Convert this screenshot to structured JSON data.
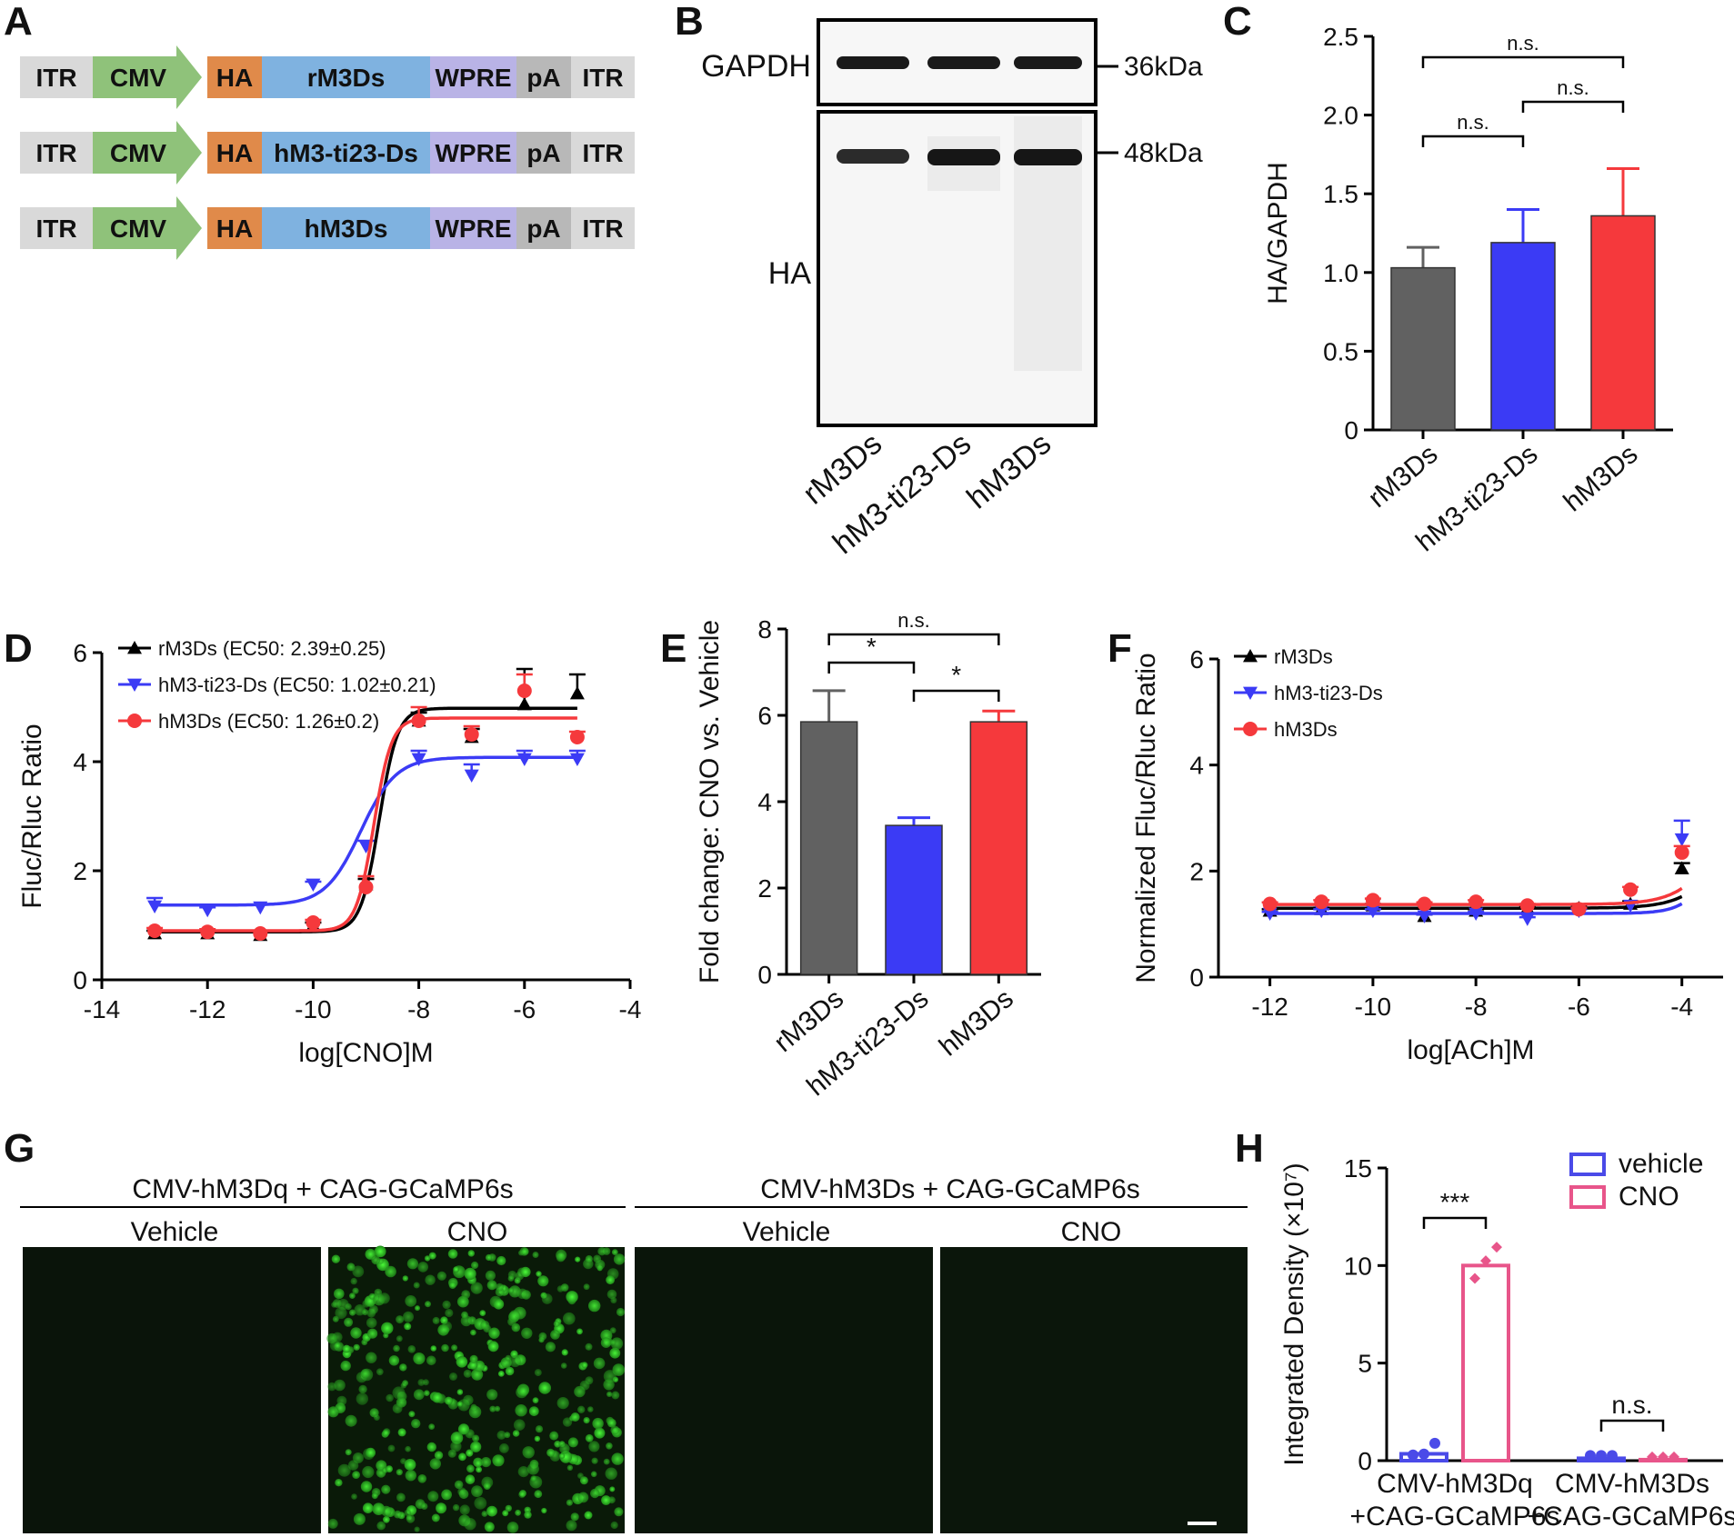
{
  "panels": {
    "A": {
      "label": "A",
      "constructs": [
        {
          "segments": [
            "ITR",
            "CMV",
            "HA",
            "rM3Ds",
            "WPRE",
            "pA",
            "ITR"
          ]
        },
        {
          "segments": [
            "ITR",
            "CMV",
            "HA",
            "hM3-ti23-Ds",
            "WPRE",
            "pA",
            "ITR"
          ]
        },
        {
          "segments": [
            "ITR",
            "CMV",
            "HA",
            "hM3Ds",
            "WPRE",
            "pA",
            "ITR"
          ]
        }
      ],
      "colors": {
        "ITR": "#d9d9d9",
        "CMV": "#8fc27a",
        "HA": "#e08a4a",
        "gene": "#7fb2e0",
        "WPRE": "#b9b3e6",
        "pA": "#b8b8b8"
      }
    },
    "B": {
      "label": "B",
      "blot_labels": [
        "GAPDH",
        "HA"
      ],
      "markers": [
        "36kDa",
        "48kDa"
      ],
      "lanes": [
        "rM3Ds",
        "hM3-ti23-Ds",
        "hM3Ds"
      ]
    },
    "G": {
      "label": "G",
      "groups": [
        {
          "title": "CMV-hM3Dq + CAG-GCaMP6s",
          "conditions": [
            "Vehicle",
            "CNO"
          ]
        },
        {
          "title": "CMV-hM3Ds + CAG-GCaMP6s",
          "conditions": [
            "Vehicle",
            "CNO"
          ]
        }
      ]
    }
  },
  "chart_data": [
    {
      "panel": "C",
      "type": "bar",
      "categories": [
        "rM3Ds",
        "hM3-ti23-Ds",
        "hM3Ds"
      ],
      "values": [
        1.03,
        1.19,
        1.36
      ],
      "errors": [
        0.13,
        0.21,
        0.3
      ],
      "colors": [
        "#616161",
        "#3b3bf5",
        "#f5393c"
      ],
      "ylabel": "HA/GAPDH",
      "ylim": [
        0,
        2.5
      ],
      "yticks": [
        "0",
        "0.5",
        "1.0",
        "1.5",
        "2.0",
        "2.5"
      ],
      "significance": [
        {
          "from": 0,
          "to": 1,
          "label": "n.s."
        },
        {
          "from": 1,
          "to": 2,
          "label": "n.s."
        },
        {
          "from": 0,
          "to": 2,
          "label": "n.s."
        }
      ]
    },
    {
      "panel": "D",
      "type": "line",
      "xlabel": "log[CNO]M",
      "ylabel": "Fluc/Rluc Ratio",
      "xlim": [
        -14,
        -4
      ],
      "ylim": [
        0,
        6
      ],
      "xticks": [
        "-14",
        "-12",
        "-10",
        "-8",
        "-6",
        "-4"
      ],
      "yticks": [
        "0",
        "2",
        "4",
        "6"
      ],
      "legend_position": "top-left",
      "x": [
        -13,
        -12,
        -11,
        -10,
        -9,
        -8,
        -7,
        -6,
        -5
      ],
      "series": [
        {
          "name": "rM3Ds (EC50: 2.39±0.25)",
          "color": "#000000",
          "marker": "triangle-up",
          "values": [
            0.85,
            0.85,
            0.82,
            1.0,
            1.75,
            4.75,
            4.45,
            5.05,
            5.25
          ],
          "errors": [
            0.05,
            0.05,
            0.05,
            0.05,
            0.1,
            0.15,
            0.15,
            0.65,
            0.35
          ],
          "fit": {
            "bottom": 0.88,
            "top": 4.98,
            "logec50": -8.75,
            "hill": 2.5
          }
        },
        {
          "name": "hM3-ti23-Ds (EC50: 1.02±0.21)",
          "color": "#3b3bf5",
          "marker": "triangle-down",
          "values": [
            1.35,
            1.28,
            1.33,
            1.75,
            2.45,
            4.05,
            3.75,
            4.05,
            4.05
          ],
          "errors": [
            0.15,
            0.05,
            0.05,
            0.05,
            0.1,
            0.15,
            0.2,
            0.15,
            0.15
          ],
          "fit": {
            "bottom": 1.37,
            "top": 4.08,
            "logec50": -9.1,
            "hill": 1.3
          }
        },
        {
          "name": "hM3Ds (EC50: 1.26±0.2)",
          "color": "#f5393c",
          "marker": "circle",
          "values": [
            0.9,
            0.88,
            0.85,
            1.05,
            1.7,
            4.75,
            4.5,
            5.3,
            4.45
          ],
          "errors": [
            0.05,
            0.05,
            0.05,
            0.05,
            0.2,
            0.25,
            0.15,
            0.3,
            0.1
          ],
          "fit": {
            "bottom": 0.9,
            "top": 4.8,
            "logec50": -8.85,
            "hill": 2.6
          }
        }
      ]
    },
    {
      "panel": "E",
      "type": "bar",
      "categories": [
        "rM3Ds",
        "hM3-ti23-Ds",
        "hM3Ds"
      ],
      "values": [
        5.85,
        3.45,
        5.85
      ],
      "errors": [
        0.72,
        0.18,
        0.25
      ],
      "colors": [
        "#616161",
        "#3b3bf5",
        "#f5393c"
      ],
      "ylabel": "Fold change: CNO vs. Vehicle",
      "ylim": [
        0,
        8
      ],
      "yticks": [
        "0",
        "2",
        "4",
        "6",
        "8"
      ],
      "significance": [
        {
          "from": 0,
          "to": 1,
          "label": "*"
        },
        {
          "from": 1,
          "to": 2,
          "label": "*"
        },
        {
          "from": 0,
          "to": 2,
          "label": "n.s."
        }
      ]
    },
    {
      "panel": "F",
      "type": "line",
      "xlabel": "log[ACh]M",
      "ylabel": "Normalized Fluc/Rluc Ratio",
      "xlim": [
        -13,
        -3.2
      ],
      "ylim": [
        0,
        6
      ],
      "xticks": [
        "-12",
        "-10",
        "-8",
        "-6",
        "-4"
      ],
      "yticks": [
        "0",
        "2",
        "4",
        "6"
      ],
      "legend_position": "top-left",
      "x": [
        -12,
        -11,
        -10,
        -9,
        -8,
        -7,
        -6,
        -5,
        -4
      ],
      "series": [
        {
          "name": "rM3Ds",
          "color": "#000000",
          "marker": "triangle-up",
          "values": [
            1.25,
            1.28,
            1.35,
            1.15,
            1.25,
            1.3,
            1.3,
            1.38,
            2.05
          ],
          "errors": [
            0.03,
            0.03,
            0.03,
            0.03,
            0.03,
            0.03,
            0.03,
            0.05,
            0.1
          ],
          "fit": {
            "bottom": 1.3,
            "top": 5.0,
            "logec50": -2.8,
            "hill": 1.0
          }
        },
        {
          "name": "hM3-ti23-Ds",
          "color": "#3b3bf5",
          "marker": "triangle-down",
          "values": [
            1.2,
            1.25,
            1.25,
            1.15,
            1.2,
            1.1,
            1.25,
            1.35,
            2.6
          ],
          "errors": [
            0.03,
            0.03,
            0.03,
            0.03,
            0.03,
            0.03,
            0.03,
            0.05,
            0.35
          ],
          "fit": {
            "bottom": 1.2,
            "top": 6.0,
            "logec50": -3.0,
            "hill": 1.4
          }
        },
        {
          "name": "hM3Ds",
          "color": "#f5393c",
          "marker": "circle",
          "values": [
            1.38,
            1.42,
            1.45,
            1.38,
            1.42,
            1.35,
            1.28,
            1.65,
            2.35
          ],
          "errors": [
            0.03,
            0.03,
            0.03,
            0.03,
            0.03,
            0.03,
            0.03,
            0.05,
            0.12
          ],
          "fit": {
            "bottom": 1.37,
            "top": 5.5,
            "logec50": -2.9,
            "hill": 1.0
          }
        }
      ]
    },
    {
      "panel": "H",
      "type": "bar",
      "categories": [
        "CMV-hM3Dq\n+CAG-GCaMP6s",
        "CMV-hM3Ds\n+CAG-GCaMP6s"
      ],
      "ylabel": "Integrated Density (×10⁷)",
      "ylim": [
        0,
        15
      ],
      "yticks": [
        "0",
        "5",
        "10",
        "15"
      ],
      "legend_position": "top-right",
      "series": [
        {
          "name": "vehicle",
          "color": "#4a4ae8",
          "values": [
            0.35,
            0.12
          ],
          "points": [
            [
              0.15,
              0.2,
              0.75
            ],
            [
              0.12,
              0.12,
              0.12
            ]
          ]
        },
        {
          "name": "CNO",
          "color": "#e8558a",
          "values": [
            10.0,
            0.05
          ],
          "points": [
            [
              9.2,
              10.1,
              10.8
            ],
            [
              0.05,
              0.05,
              0.05
            ]
          ]
        }
      ],
      "significance": [
        {
          "group": 0,
          "label": "***"
        },
        {
          "group": 1,
          "label": "n.s."
        }
      ]
    }
  ]
}
